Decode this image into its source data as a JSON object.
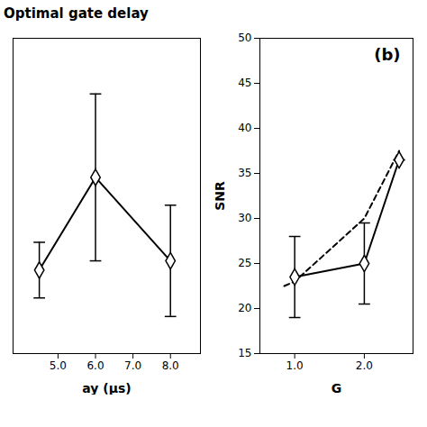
{
  "chart_data": [
    {
      "type": "line",
      "title": "Optimal gate delay",
      "xlabel": "ay (μs)",
      "xlim": [
        3.8,
        8.8
      ],
      "ylim": [
        29,
        46
      ],
      "xticks": [
        5,
        6,
        7,
        8
      ],
      "tick_labels": "x",
      "series": [
        {
          "color": "black",
          "marker": "diamond",
          "line_style": "solid",
          "x": [
            4.5,
            6.0,
            8.0
          ],
          "values": [
            33.5,
            38.5,
            34.0
          ],
          "yerr": [
            1.5,
            4.5,
            3.0
          ]
        }
      ]
    },
    {
      "type": "line",
      "xlabel": "G",
      "ylabel": "SNR",
      "annotations": [
        "(b)"
      ],
      "xlim": [
        0.5,
        2.7
      ],
      "ylim": [
        15,
        50
      ],
      "xticks": [
        1,
        2
      ],
      "yticks": [
        15,
        20,
        25,
        30,
        35,
        40,
        45,
        50
      ],
      "series": [
        {
          "color": "black",
          "line_style": "dashed",
          "x": [
            0.85,
            1.0,
            2.0,
            2.5
          ],
          "values": [
            22.5,
            23.0,
            30.0,
            37.5
          ]
        },
        {
          "color": "black",
          "marker": "diamond",
          "line_style": "solid",
          "x": [
            1.0,
            2.0,
            2.5
          ],
          "values": [
            23.5,
            25.0,
            36.5
          ],
          "yerr": [
            4.5,
            4.5,
            0
          ]
        }
      ]
    }
  ]
}
